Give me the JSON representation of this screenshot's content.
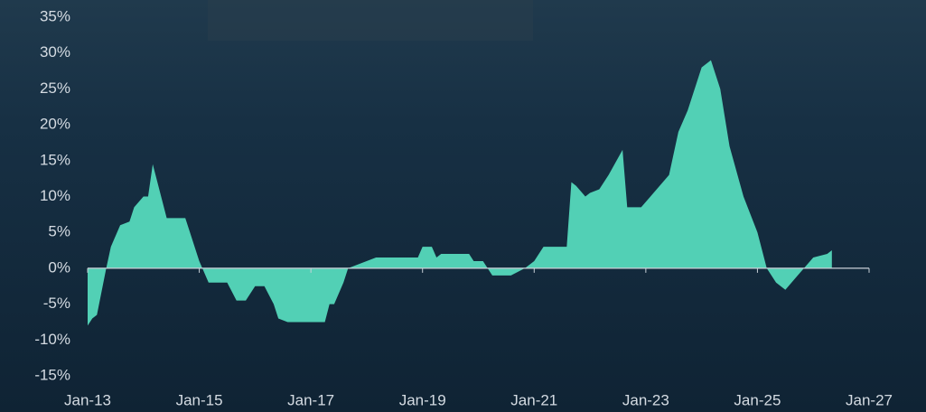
{
  "chart_data": {
    "type": "area",
    "color": "#52d0b5",
    "x": [
      "2013-01",
      "2013-02",
      "2013-03",
      "2013-05",
      "2013-06",
      "2013-08",
      "2013-10",
      "2013-11",
      "2014-01",
      "2014-02",
      "2014-03",
      "2014-04",
      "2014-06",
      "2014-10",
      "2014-12",
      "2015-01",
      "2015-03",
      "2015-07",
      "2015-09",
      "2015-11",
      "2016-01",
      "2016-03",
      "2016-05",
      "2016-06",
      "2016-08",
      "2017-04",
      "2017-05",
      "2017-06",
      "2017-08",
      "2017-09",
      "2018-03",
      "2018-12",
      "2019-01",
      "2019-03",
      "2019-04",
      "2019-05",
      "2019-11",
      "2019-12",
      "2020-02",
      "2020-04",
      "2020-08",
      "2020-11",
      "2021-01",
      "2021-03",
      "2021-08",
      "2021-09",
      "2021-10",
      "2021-12",
      "2022-01",
      "2022-03",
      "2022-05",
      "2022-08",
      "2022-09",
      "2022-12",
      "2023-02",
      "2023-06",
      "2023-08",
      "2023-10",
      "2023-12",
      "2024-01",
      "2024-03",
      "2024-05",
      "2024-07",
      "2024-10",
      "2025-01",
      "2025-03",
      "2025-05",
      "2025-07",
      "2025-09",
      "2025-11",
      "2026-01",
      "2026-04",
      "2026-05"
    ],
    "values": [
      -8,
      -7,
      -6.5,
      0,
      3,
      6,
      6.5,
      8.5,
      10,
      10,
      14.5,
      12,
      7,
      7,
      3,
      1,
      -2,
      -2,
      -4.5,
      -4.5,
      -2.5,
      -2.5,
      -5,
      -7,
      -7.5,
      -7.5,
      -5,
      -5,
      -2,
      0,
      1.5,
      1.5,
      3,
      3,
      1.5,
      2,
      2,
      1,
      1,
      -1,
      -1,
      0,
      1,
      3,
      3,
      12,
      11.5,
      10,
      10.5,
      11,
      13,
      16.5,
      8.5,
      8.5,
      10,
      13,
      19,
      22,
      26,
      28,
      29,
      25,
      17,
      10,
      5,
      0,
      -2,
      -3,
      -1.5,
      0,
      1.5,
      2,
      2.5
    ],
    "xlim": [
      "2013-01",
      "2027-01"
    ],
    "xticks": [
      {
        "value": "2013-01",
        "label": "Jan-13"
      },
      {
        "value": "2015-01",
        "label": "Jan-15"
      },
      {
        "value": "2017-01",
        "label": "Jan-17"
      },
      {
        "value": "2019-01",
        "label": "Jan-19"
      },
      {
        "value": "2021-01",
        "label": "Jan-21"
      },
      {
        "value": "2023-01",
        "label": "Jan-23"
      },
      {
        "value": "2025-01",
        "label": "Jan-25"
      },
      {
        "value": "2027-01",
        "label": "Jan-27"
      }
    ],
    "ylim": [
      -15,
      35
    ],
    "yticks": [
      {
        "value": -15,
        "label": "-15%"
      },
      {
        "value": -10,
        "label": "-10%"
      },
      {
        "value": -5,
        "label": "-5%"
      },
      {
        "value": 0,
        "label": "0%"
      },
      {
        "value": 5,
        "label": "5%"
      },
      {
        "value": 10,
        "label": "10%"
      },
      {
        "value": 15,
        "label": "15%"
      },
      {
        "value": 20,
        "label": "20%"
      },
      {
        "value": 25,
        "label": "25%"
      },
      {
        "value": 30,
        "label": "30%"
      },
      {
        "value": 35,
        "label": "35%"
      }
    ]
  }
}
